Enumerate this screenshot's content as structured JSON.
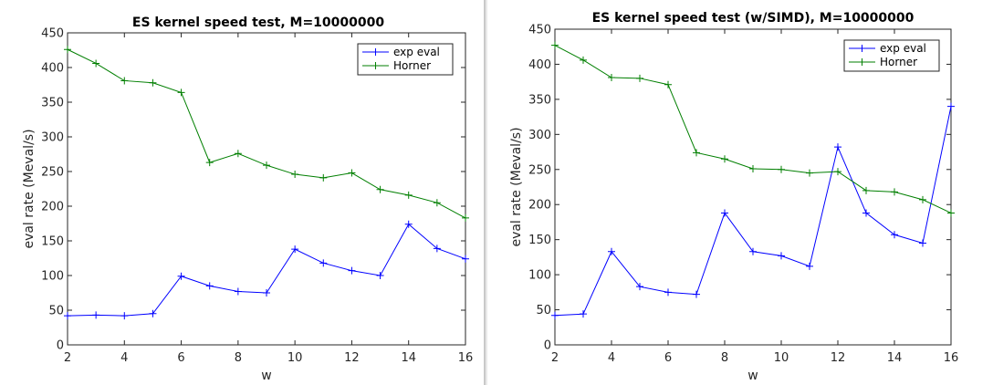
{
  "chart_data": [
    {
      "type": "line",
      "title": "ES kernel speed test, M=10000000",
      "xlabel": "w",
      "ylabel": "eval rate (Meval/s)",
      "xlim": [
        2,
        16
      ],
      "ylim": [
        0,
        450
      ],
      "xticks": [
        2,
        4,
        6,
        8,
        10,
        12,
        14,
        16
      ],
      "yticks": [
        0,
        50,
        100,
        150,
        200,
        250,
        300,
        350,
        400,
        450
      ],
      "grid": false,
      "legend_position": "top-right",
      "x": [
        2,
        3,
        4,
        5,
        6,
        7,
        8,
        9,
        10,
        11,
        12,
        13,
        14,
        15,
        16
      ],
      "series": [
        {
          "name": "exp eval",
          "color": "#0000ff",
          "marker": "+",
          "values": [
            42,
            43,
            42,
            45,
            99,
            85,
            77,
            75,
            138,
            118,
            107,
            100,
            174,
            139,
            124
          ]
        },
        {
          "name": "Horner",
          "color": "#007f00",
          "marker": "+",
          "values": [
            426,
            406,
            381,
            378,
            364,
            263,
            276,
            259,
            246,
            241,
            248,
            224,
            216,
            205,
            183
          ]
        }
      ]
    },
    {
      "type": "line",
      "title": "ES kernel speed test (w/SIMD), M=10000000",
      "xlabel": "w",
      "ylabel": "eval rate (Meval/s)",
      "xlim": [
        2,
        16
      ],
      "ylim": [
        0,
        450
      ],
      "xticks": [
        2,
        4,
        6,
        8,
        10,
        12,
        14,
        16
      ],
      "yticks": [
        0,
        50,
        100,
        150,
        200,
        250,
        300,
        350,
        400,
        450
      ],
      "grid": false,
      "legend_position": "top-right",
      "x": [
        2,
        3,
        4,
        5,
        6,
        7,
        8,
        9,
        10,
        11,
        12,
        13,
        14,
        15,
        16
      ],
      "series": [
        {
          "name": "exp eval",
          "color": "#0000ff",
          "marker": "+",
          "values": [
            42,
            44,
            133,
            83,
            75,
            72,
            188,
            133,
            127,
            112,
            282,
            188,
            157,
            145,
            340
          ]
        },
        {
          "name": "Horner",
          "color": "#007f00",
          "marker": "+",
          "values": [
            427,
            406,
            381,
            380,
            371,
            274,
            265,
            251,
            250,
            245,
            247,
            220,
            218,
            207,
            188
          ]
        }
      ]
    }
  ]
}
